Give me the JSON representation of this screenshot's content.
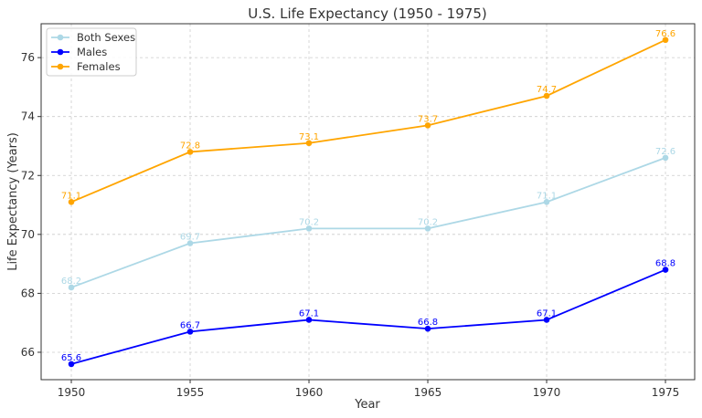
{
  "chart_data": {
    "type": "line",
    "title": "U.S. Life Expectancy (1950 - 1975)",
    "xlabel": "Year",
    "ylabel": "Life Expectancy (Years)",
    "x": [
      1950,
      1955,
      1960,
      1965,
      1970,
      1975
    ],
    "xlim": [
      1948.73,
      1976.23
    ],
    "ylim": [
      65.07,
      77.15
    ],
    "xticks": [
      1950,
      1955,
      1960,
      1965,
      1970,
      1975
    ],
    "yticks": [
      66,
      68,
      70,
      72,
      74,
      76
    ],
    "grid": true,
    "legend": "top-left",
    "series": [
      {
        "name": "Both Sexes",
        "color": "#add8e6",
        "values": [
          68.2,
          69.7,
          70.2,
          70.2,
          71.1,
          72.6
        ]
      },
      {
        "name": "Males",
        "color": "#0000ff",
        "values": [
          65.6,
          66.7,
          67.1,
          66.8,
          67.1,
          68.8
        ]
      },
      {
        "name": "Females",
        "color": "#ffa500",
        "values": [
          71.1,
          72.8,
          73.1,
          73.7,
          74.7,
          76.6
        ]
      }
    ]
  }
}
